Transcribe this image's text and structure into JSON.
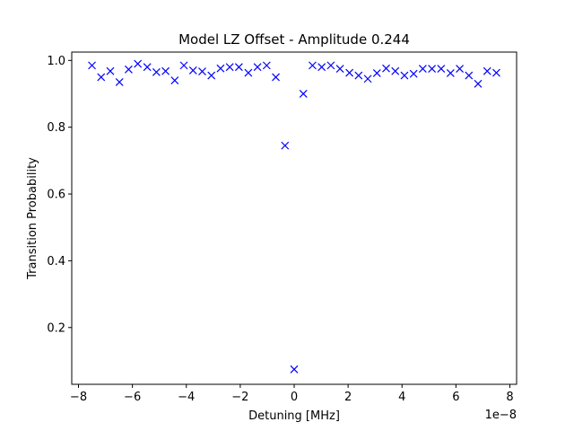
{
  "chart_data": {
    "type": "scatter",
    "title": "Model LZ Offset - Amplitude 0.244",
    "xlabel": "Detuning [MHz]",
    "ylabel": "Transition Probability",
    "x_offset_label": "1e−8",
    "marker": "x",
    "color": "#0000ff",
    "grid": false,
    "xlim": [
      -8.25,
      8.25
    ],
    "ylim": [
      0.03,
      1.025
    ],
    "xticks": [
      -8,
      -6,
      -4,
      -2,
      0,
      2,
      4,
      6,
      8
    ],
    "xtick_labels": [
      "−8",
      "−6",
      "−4",
      "−2",
      "0",
      "2",
      "4",
      "6",
      "8"
    ],
    "yticks": [
      0.2,
      0.4,
      0.6,
      0.8,
      1.0
    ],
    "ytick_labels": [
      "0.2",
      "0.4",
      "0.6",
      "0.8",
      "1.0"
    ],
    "series": [
      {
        "x": [
          -7.5,
          -7.16,
          -6.82,
          -6.48,
          -6.14,
          -5.8,
          -5.45,
          -5.11,
          -4.77,
          -4.43,
          -4.09,
          -3.75,
          -3.41,
          -3.07,
          -2.73,
          -2.39,
          -2.05,
          -1.7,
          -1.36,
          -1.02,
          -0.68,
          -0.34,
          0.0,
          0.34,
          0.68,
          1.02,
          1.36,
          1.7,
          2.05,
          2.39,
          2.73,
          3.07,
          3.41,
          3.75,
          4.09,
          4.43,
          4.77,
          5.11,
          5.45,
          5.8,
          6.14,
          6.48,
          6.82,
          7.16,
          7.5
        ],
        "y": [
          0.985,
          0.95,
          0.968,
          0.935,
          0.973,
          0.99,
          0.98,
          0.965,
          0.968,
          0.94,
          0.985,
          0.97,
          0.967,
          0.955,
          0.976,
          0.98,
          0.98,
          0.963,
          0.98,
          0.985,
          0.95,
          0.745,
          0.075,
          0.9,
          0.985,
          0.98,
          0.985,
          0.975,
          0.963,
          0.955,
          0.945,
          0.962,
          0.976,
          0.968,
          0.955,
          0.96,
          0.975,
          0.975,
          0.975,
          0.962,
          0.975,
          0.955,
          0.93,
          0.968,
          0.963
        ]
      }
    ]
  }
}
